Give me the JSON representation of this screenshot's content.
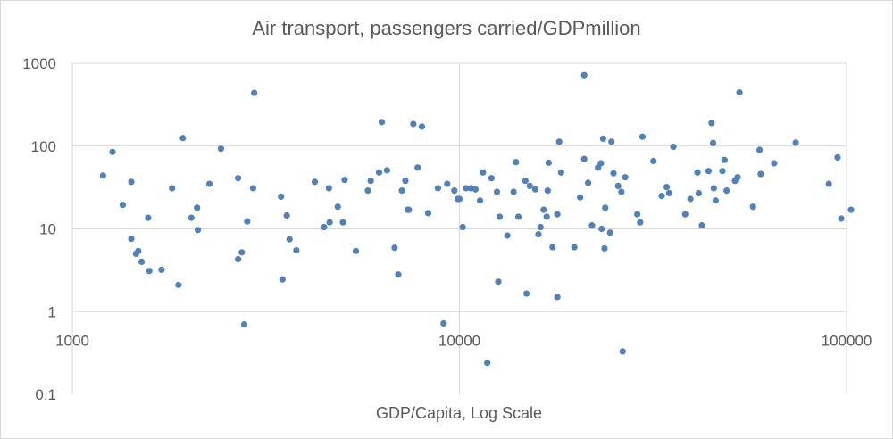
{
  "chart_data": {
    "type": "scatter",
    "title": "Air transport, passengers carried/GDPmillion",
    "xlabel": "GDP/Capita, Log Scale",
    "ylabel": "",
    "x_scale": "log",
    "y_scale": "log",
    "xlim": [
      1000,
      100000
    ],
    "ylim": [
      0.1,
      1000
    ],
    "x_ticks": [
      "1000",
      "10000",
      "100000"
    ],
    "y_ticks": [
      "0.1",
      "1",
      "10",
      "100",
      "1000"
    ],
    "grid": true,
    "legend": "none",
    "series_color": "#4f81bd",
    "points": [
      [
        1200,
        44
      ],
      [
        1270,
        85
      ],
      [
        1350,
        19.5
      ],
      [
        1420,
        37
      ],
      [
        1420,
        7.6
      ],
      [
        1460,
        5
      ],
      [
        1480,
        5.4
      ],
      [
        1510,
        4
      ],
      [
        1570,
        13.6
      ],
      [
        1580,
        3.1
      ],
      [
        1700,
        3.2
      ],
      [
        1810,
        31
      ],
      [
        1880,
        2.1
      ],
      [
        1930,
        125
      ],
      [
        2030,
        13.6
      ],
      [
        2100,
        18
      ],
      [
        2110,
        9.7
      ],
      [
        2260,
        35
      ],
      [
        2420,
        93
      ],
      [
        2680,
        41
      ],
      [
        2680,
        4.3
      ],
      [
        2740,
        5.2
      ],
      [
        2780,
        0.7
      ],
      [
        2830,
        12.3
      ],
      [
        2930,
        31
      ],
      [
        2950,
        440
      ],
      [
        3460,
        24.5
      ],
      [
        3490,
        2.45
      ],
      [
        3580,
        14.5
      ],
      [
        3640,
        7.5
      ],
      [
        3790,
        5.5
      ],
      [
        4230,
        37
      ],
      [
        4470,
        10.5
      ],
      [
        4600,
        31
      ],
      [
        4620,
        12
      ],
      [
        4850,
        18.5
      ],
      [
        5000,
        12
      ],
      [
        5050,
        39
      ],
      [
        5400,
        5.4
      ],
      [
        5800,
        29
      ],
      [
        5900,
        38
      ],
      [
        6200,
        48
      ],
      [
        6300,
        195
      ],
      [
        6500,
        51
      ],
      [
        6800,
        5.9
      ],
      [
        6950,
        2.8
      ],
      [
        7100,
        29
      ],
      [
        7250,
        38
      ],
      [
        7350,
        17
      ],
      [
        7400,
        17
      ],
      [
        7600,
        185
      ],
      [
        7800,
        55
      ],
      [
        8000,
        172
      ],
      [
        8300,
        15.5
      ],
      [
        8800,
        31
      ],
      [
        9100,
        0.72
      ],
      [
        9300,
        35
      ],
      [
        9700,
        29
      ],
      [
        9900,
        23
      ],
      [
        10000,
        23
      ],
      [
        10200,
        10.5
      ],
      [
        10400,
        31
      ],
      [
        10700,
        31
      ],
      [
        11000,
        30
      ],
      [
        11300,
        22
      ],
      [
        11500,
        48
      ],
      [
        11800,
        0.24
      ],
      [
        12100,
        41
      ],
      [
        12500,
        28
      ],
      [
        12600,
        2.3
      ],
      [
        12700,
        14
      ],
      [
        13300,
        8.3
      ],
      [
        13800,
        28
      ],
      [
        14000,
        64
      ],
      [
        14200,
        14
      ],
      [
        14800,
        38
      ],
      [
        14900,
        1.65
      ],
      [
        15200,
        33
      ],
      [
        15700,
        30
      ],
      [
        16000,
        8.6
      ],
      [
        16200,
        10.5
      ],
      [
        16500,
        17
      ],
      [
        16800,
        14
      ],
      [
        16900,
        29
      ],
      [
        17000,
        63
      ],
      [
        17400,
        6
      ],
      [
        17900,
        15
      ],
      [
        17900,
        1.5
      ],
      [
        18100,
        113
      ],
      [
        18300,
        48
      ],
      [
        19800,
        6
      ],
      [
        20500,
        24
      ],
      [
        21000,
        70
      ],
      [
        21000,
        720
      ],
      [
        21500,
        36
      ],
      [
        22000,
        11
      ],
      [
        22800,
        55
      ],
      [
        23200,
        62
      ],
      [
        23300,
        10
      ],
      [
        23500,
        123
      ],
      [
        23700,
        5.8
      ],
      [
        23800,
        18
      ],
      [
        24500,
        9
      ],
      [
        24700,
        113
      ],
      [
        25000,
        47
      ],
      [
        25700,
        33
      ],
      [
        26200,
        28
      ],
      [
        26400,
        0.33
      ],
      [
        26800,
        42
      ],
      [
        28800,
        15
      ],
      [
        29700,
        130
      ],
      [
        29300,
        12
      ],
      [
        31700,
        66
      ],
      [
        33300,
        25
      ],
      [
        34300,
        32
      ],
      [
        34800,
        27
      ],
      [
        35700,
        98
      ],
      [
        38300,
        15
      ],
      [
        39500,
        23
      ],
      [
        41200,
        48
      ],
      [
        41500,
        27
      ],
      [
        42300,
        11
      ],
      [
        44000,
        50
      ],
      [
        44800,
        190
      ],
      [
        45200,
        109
      ],
      [
        45400,
        31
      ],
      [
        45900,
        22
      ],
      [
        47800,
        50
      ],
      [
        48400,
        68
      ],
      [
        49000,
        29
      ],
      [
        51500,
        38
      ],
      [
        52300,
        42
      ],
      [
        52900,
        445
      ],
      [
        57300,
        18.5
      ],
      [
        59600,
        90
      ],
      [
        60000,
        46
      ],
      [
        65000,
        62
      ],
      [
        73900,
        110
      ],
      [
        90000,
        35
      ],
      [
        94800,
        73
      ],
      [
        96900,
        13.3
      ],
      [
        117000,
        17
      ]
    ]
  }
}
